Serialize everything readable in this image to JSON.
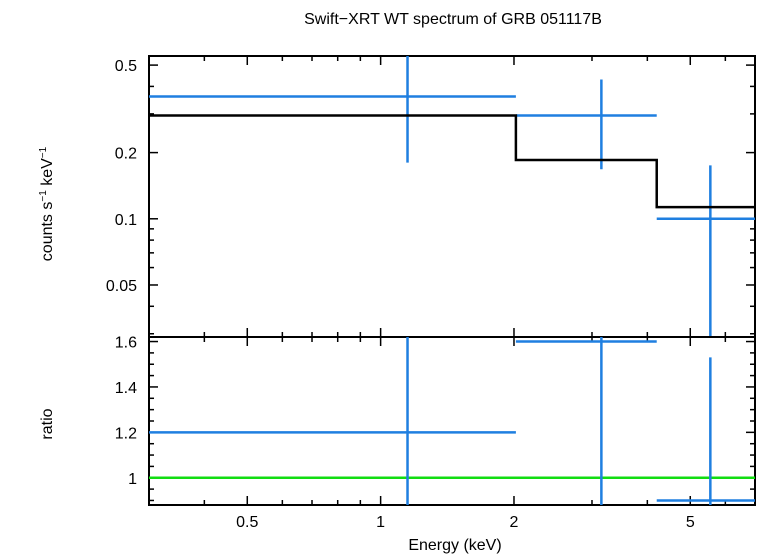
{
  "colors": {
    "data": "#1f7fe0",
    "model": "#000000",
    "unity": "#11dd11",
    "frame": "#000000"
  },
  "chart_data": {
    "type": "scatter",
    "title": "Swift−XRT WT spectrum of GRB 051117B",
    "xlabel": "Energy (keV)",
    "xscale": "log",
    "xlim": [
      0.3,
      7.0
    ],
    "x_ticklabels": [
      "0.5",
      "1",
      "2",
      "5"
    ],
    "panels": [
      {
        "id": "spectrum",
        "ylabel_parts": [
          "counts s",
          "−1",
          " keV",
          "−1"
        ],
        "yscale": "log",
        "ylim": [
          0.029,
          0.55
        ],
        "y_ticklabels": [
          "0.5",
          "0.2",
          "0.1",
          "0.05"
        ],
        "series": [
          {
            "kind": "data",
            "points": [
              {
                "x": 1.15,
                "xlo": 0.3,
                "xhi": 2.02,
                "y": 0.36,
                "ylo": 0.18,
                "yhi": 0.55
              },
              {
                "x": 3.15,
                "xlo": 2.02,
                "xhi": 4.2,
                "y": 0.295,
                "ylo": 0.168,
                "yhi": 0.43
              },
              {
                "x": 5.55,
                "xlo": 4.2,
                "xhi": 7.0,
                "y": 0.1,
                "ylo": 0.029,
                "yhi": 0.175
              }
            ]
          },
          {
            "kind": "model",
            "steps": [
              {
                "xlo": 0.3,
                "xhi": 2.02,
                "y": 0.295
              },
              {
                "xlo": 2.02,
                "xhi": 4.2,
                "y": 0.185
              },
              {
                "xlo": 4.2,
                "xhi": 7.0,
                "y": 0.113
              }
            ]
          }
        ]
      },
      {
        "id": "ratio",
        "ylabel": "ratio",
        "yscale": "linear",
        "ylim": [
          0.88,
          1.62
        ],
        "y_ticklabels": [
          "1.6",
          "1.4",
          "1.2",
          "1"
        ],
        "reference_line": 1.0,
        "series": [
          {
            "kind": "data",
            "points": [
              {
                "x": 1.15,
                "xlo": 0.3,
                "xhi": 2.02,
                "y": 1.2,
                "ylo": 0.88,
                "yhi": 1.62
              },
              {
                "x": 3.15,
                "xlo": 2.02,
                "xhi": 4.2,
                "y": 1.6,
                "ylo": 0.88,
                "yhi": 1.62
              },
              {
                "x": 5.55,
                "xlo": 4.2,
                "xhi": 7.0,
                "y": 0.9,
                "ylo": 0.88,
                "yhi": 1.53
              }
            ]
          }
        ]
      }
    ]
  }
}
